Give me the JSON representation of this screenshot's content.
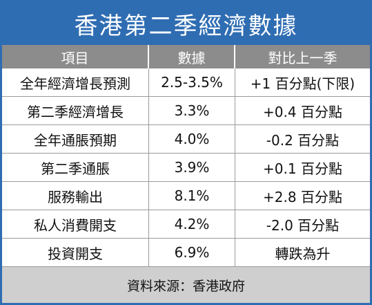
{
  "header": {
    "title": "香港第二季經濟數據"
  },
  "table": {
    "columns": [
      "項目",
      "數據",
      "對比上一季"
    ],
    "rows": [
      [
        "全年經濟增長預測",
        "2.5-3.5%",
        "+1 百分點(下限)"
      ],
      [
        "第二季經濟增長",
        "3.3%",
        "+0.4 百分點"
      ],
      [
        "全年通脹預期",
        "4.0%",
        "-0.2 百分點"
      ],
      [
        "第二季通脹",
        "3.9%",
        "+0.1 百分點"
      ],
      [
        "服務輸出",
        "8.1%",
        "+2.8 百分點"
      ],
      [
        "私人消費開支",
        "4.2%",
        "-2.0 百分點"
      ],
      [
        "投資開支",
        "6.9%",
        "轉跌為升"
      ]
    ]
  },
  "footer": {
    "source": "資料來源：香港政府"
  }
}
